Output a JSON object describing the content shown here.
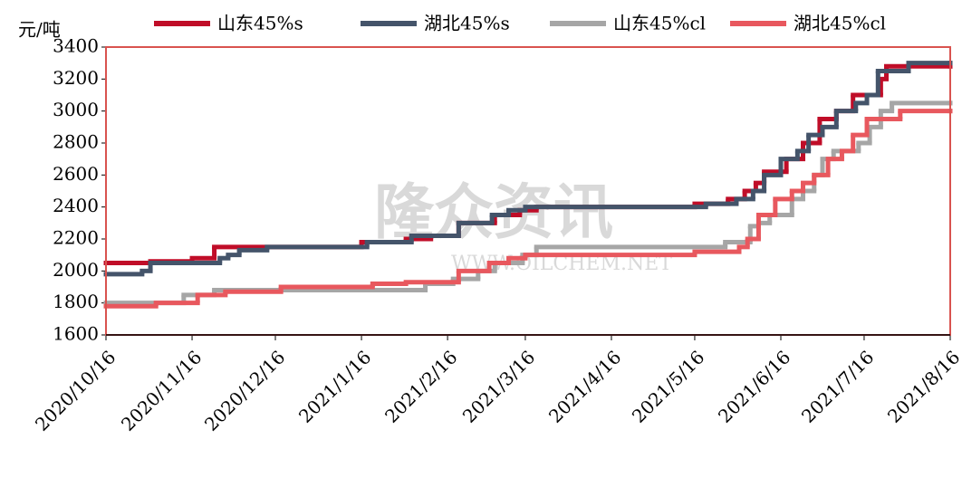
{
  "chart_data": {
    "type": "step-line",
    "y_unit": "元/吨",
    "watermark": "隆众资讯",
    "watermark_url": "WWW.OILCHEM.NET",
    "ylim": [
      1600,
      3400
    ],
    "yticks": [
      1600,
      1800,
      2000,
      2200,
      2400,
      2600,
      2800,
      3000,
      3200,
      3400
    ],
    "xlim": [
      "2020/10/16",
      "2021/8/16"
    ],
    "xticks": [
      "2020/10/16",
      "2020/11/16",
      "2020/12/16",
      "2021/1/16",
      "2021/2/16",
      "2021/3/16",
      "2021/4/16",
      "2021/5/16",
      "2021/6/16",
      "2021/7/16",
      "2021/8/16"
    ],
    "series": [
      {
        "name": "山东45%s",
        "color": "#c00d28",
        "x": [
          "2020/10/16",
          "2020/11/1",
          "2020/11/16",
          "2020/11/24",
          "2021/1/16",
          "2021/2/1",
          "2021/2/10",
          "2021/2/20",
          "2021/3/5",
          "2021/3/14",
          "2021/3/20",
          "2021/5/16",
          "2021/5/28",
          "2021/6/3",
          "2021/6/7",
          "2021/6/10",
          "2021/6/18",
          "2021/6/24",
          "2021/6/30",
          "2021/7/6",
          "2021/7/12",
          "2021/7/22",
          "2021/7/24",
          "2021/8/16"
        ],
        "values": [
          2050,
          2060,
          2080,
          2150,
          2180,
          2200,
          2220,
          2300,
          2350,
          2380,
          2400,
          2420,
          2450,
          2500,
          2550,
          2620,
          2700,
          2800,
          2950,
          3000,
          3100,
          3200,
          3280,
          3280
        ]
      },
      {
        "name": "湖北45%s",
        "color": "#44546a",
        "x": [
          "2020/10/16",
          "2020/10/29",
          "2020/11/1",
          "2020/11/26",
          "2020/11/29",
          "2020/12/3",
          "2020/12/13",
          "2021/1/18",
          "2021/2/3",
          "2021/2/20",
          "2021/3/4",
          "2021/3/10",
          "2021/3/16",
          "2021/5/20",
          "2021/5/31",
          "2021/6/6",
          "2021/6/10",
          "2021/6/16",
          "2021/6/22",
          "2021/6/26",
          "2021/7/1",
          "2021/7/6",
          "2021/7/13",
          "2021/7/17",
          "2021/7/21",
          "2021/8/1",
          "2021/8/16"
        ],
        "values": [
          1980,
          2000,
          2050,
          2080,
          2100,
          2130,
          2150,
          2180,
          2220,
          2300,
          2350,
          2380,
          2400,
          2420,
          2450,
          2500,
          2600,
          2700,
          2750,
          2850,
          2900,
          3000,
          3050,
          3100,
          3250,
          3300,
          3300
        ]
      },
      {
        "name": "山东45%cl",
        "color": "#a6a6a6",
        "x": [
          "2020/10/16",
          "2020/11/13",
          "2020/11/24",
          "2021/2/8",
          "2021/2/18",
          "2021/2/27",
          "2021/3/5",
          "2021/3/15",
          "2021/3/20",
          "2021/5/27",
          "2021/6/5",
          "2021/6/8",
          "2021/6/12",
          "2021/6/20",
          "2021/6/24",
          "2021/6/28",
          "2021/7/1",
          "2021/7/5",
          "2021/7/14",
          "2021/7/18",
          "2021/7/22",
          "2021/7/26",
          "2021/8/16"
        ],
        "values": [
          1800,
          1850,
          1880,
          1920,
          1950,
          2000,
          2050,
          2100,
          2150,
          2180,
          2280,
          2300,
          2350,
          2450,
          2500,
          2600,
          2700,
          2750,
          2800,
          2900,
          3000,
          3050,
          3050
        ]
      },
      {
        "name": "湖北45%cl",
        "color": "#e8585e",
        "x": [
          "2020/10/16",
          "2020/11/3",
          "2020/11/18",
          "2020/11/28",
          "2020/12/18",
          "2021/1/20",
          "2021/2/1",
          "2021/2/20",
          "2021/3/3",
          "2021/3/10",
          "2021/3/16",
          "2021/5/16",
          "2021/6/1",
          "2021/6/4",
          "2021/6/8",
          "2021/6/14",
          "2021/6/20",
          "2021/6/24",
          "2021/6/28",
          "2021/7/3",
          "2021/7/8",
          "2021/7/12",
          "2021/7/17",
          "2021/7/29",
          "2021/8/16"
        ],
        "values": [
          1780,
          1800,
          1850,
          1870,
          1900,
          1920,
          1930,
          2000,
          2050,
          2080,
          2100,
          2120,
          2150,
          2200,
          2350,
          2450,
          2500,
          2550,
          2600,
          2700,
          2750,
          2850,
          2950,
          3000,
          3000
        ]
      }
    ]
  }
}
